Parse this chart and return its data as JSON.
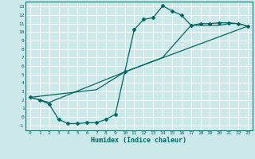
{
  "xlabel": "Humidex (Indice chaleur)",
  "bg_color": "#cce8e8",
  "grid_color": "#ffffff",
  "line_color": "#006666",
  "xlim": [
    -0.5,
    23.5
  ],
  "ylim": [
    -1.6,
    13.6
  ],
  "xticks": [
    0,
    1,
    2,
    3,
    4,
    5,
    6,
    7,
    8,
    9,
    10,
    11,
    12,
    13,
    14,
    15,
    16,
    17,
    18,
    19,
    20,
    21,
    22,
    23
  ],
  "yticks": [
    -1,
    0,
    1,
    2,
    3,
    4,
    5,
    6,
    7,
    8,
    9,
    10,
    11,
    12,
    13
  ],
  "curve1_x": [
    0,
    1,
    2,
    3,
    4,
    5,
    6,
    7,
    8,
    9,
    10,
    11,
    12,
    13,
    14,
    15,
    16,
    17,
    18,
    19,
    20,
    21,
    22,
    23
  ],
  "curve1_y": [
    2.3,
    2.0,
    1.5,
    -0.3,
    -0.8,
    -0.8,
    -0.7,
    -0.7,
    -0.3,
    0.3,
    5.3,
    10.3,
    11.5,
    11.7,
    13.1,
    12.5,
    12.0,
    10.8,
    11.0,
    11.0,
    11.1,
    11.1,
    11.0,
    10.7
  ],
  "curve2_x": [
    0,
    2,
    10,
    23
  ],
  "curve2_y": [
    2.3,
    1.7,
    5.3,
    10.7
  ],
  "curve3_x": [
    0,
    7,
    10,
    14,
    17,
    20,
    21,
    22,
    23
  ],
  "curve3_y": [
    2.3,
    3.2,
    5.3,
    7.0,
    10.8,
    10.8,
    11.0,
    11.0,
    10.7
  ]
}
